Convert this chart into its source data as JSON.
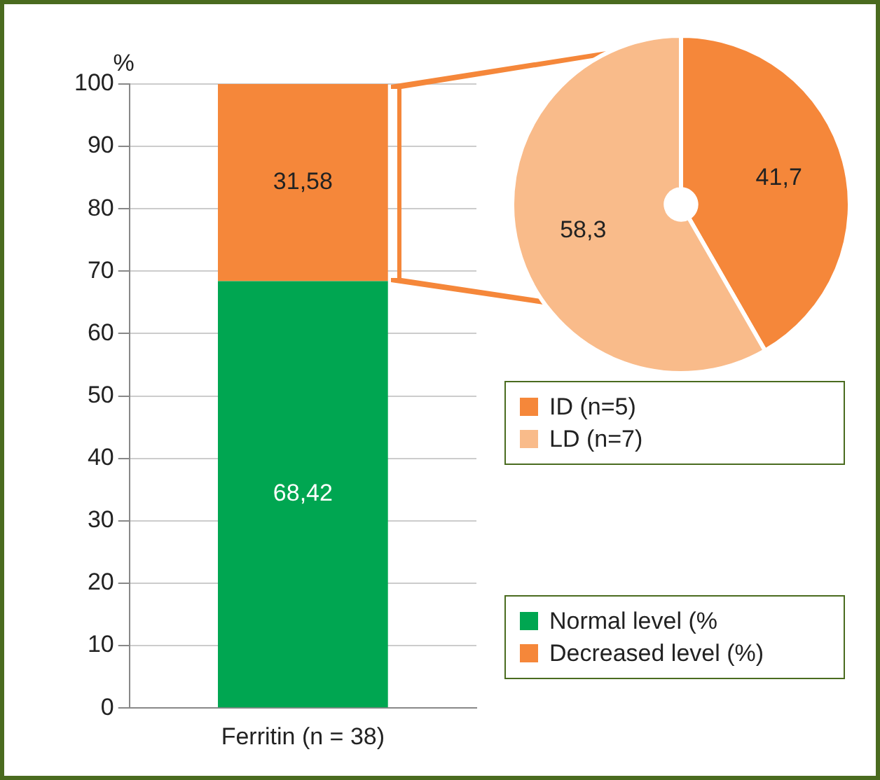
{
  "chart_data": [
    {
      "type": "bar",
      "stacked": true,
      "ylabel": "%",
      "categories": [
        "Ferritin (n = 38)"
      ],
      "ylim": [
        0,
        100
      ],
      "yticks": [
        0,
        10,
        20,
        30,
        40,
        50,
        60,
        70,
        80,
        90,
        100
      ],
      "grid": "y",
      "legend": "bottom right",
      "series": [
        {
          "name": "Normal level (%",
          "color": "#00a651",
          "values": [
            68.42
          ],
          "value_labels": [
            "68,42"
          ]
        },
        {
          "name": "Decreased level (%)",
          "color": "#f5873a",
          "values": [
            31.58
          ],
          "value_labels": [
            "31,58"
          ]
        }
      ]
    },
    {
      "type": "pie",
      "categories": [
        "ID (n=5)",
        "LD (n=7)"
      ],
      "values": [
        41.7,
        58.3
      ],
      "colors": [
        "#f5873a",
        "#f9bb8a"
      ],
      "value_labels": [
        "41,7",
        "58,3"
      ],
      "legend": "bottom"
    }
  ]
}
